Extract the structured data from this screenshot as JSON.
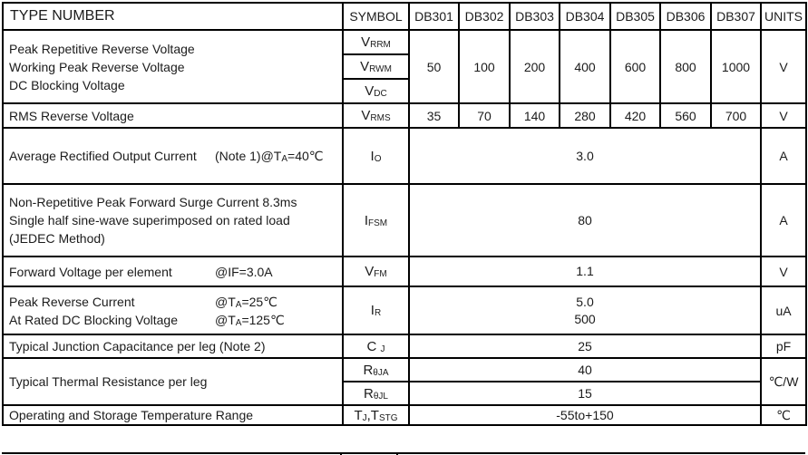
{
  "header": {
    "type_number": "TYPE NUMBER",
    "symbol": "SYMBOL",
    "types": [
      "DB301",
      "DB302",
      "DB303",
      "DB304",
      "DB305",
      "DB306",
      "DB307"
    ],
    "units": "UNITS"
  },
  "rows": [
    {
      "id": "reverse-voltage",
      "param_lines": [
        {
          "main": [
            "Peak Repetitive Reverse Voltage"
          ]
        },
        {
          "main": [
            "Working Peak Reverse Voltage"
          ]
        },
        {
          "main": [
            "DC Blocking Voltage"
          ]
        }
      ],
      "symbols": [
        [
          "V",
          {
            "sub": "RRM"
          }
        ],
        [
          "V",
          {
            "sub": "RWM"
          }
        ],
        [
          "V",
          {
            "sub": "DC"
          }
        ]
      ],
      "values_per_type": [
        "50",
        "100",
        "200",
        "400",
        "600",
        "800",
        "1000"
      ],
      "unit": "V"
    },
    {
      "id": "rms-reverse-voltage",
      "param_lines": [
        {
          "main": [
            "RMS Reverse Voltage"
          ]
        }
      ],
      "symbols": [
        [
          "V",
          {
            "sub": "RMS"
          }
        ]
      ],
      "values_per_type": [
        "35",
        "70",
        "140",
        "280",
        "420",
        "560",
        "700"
      ],
      "unit": "V"
    },
    {
      "id": "average-rectified-output-current",
      "param_lines": [
        {
          "main": [
            "Average Rectified Output Current"
          ],
          "cond": [
            "(Note 1)@T",
            {
              "sub": "A"
            },
            "=40℃"
          ]
        }
      ],
      "symbols": [
        [
          "I",
          {
            "sub": "O"
          }
        ]
      ],
      "merged_value": [
        "3.0"
      ],
      "unit": "A"
    },
    {
      "id": "surge-current",
      "param_lines": [
        {
          "main": [
            "Non-Repetitive Peak Forward Surge Current 8.3ms"
          ]
        },
        {
          "main": [
            "Single half sine-wave superimposed on rated load"
          ]
        },
        {
          "main": [
            "(JEDEC Method)"
          ]
        }
      ],
      "symbols": [
        [
          "I",
          {
            "sub": "FSM"
          }
        ]
      ],
      "merged_value": [
        "80"
      ],
      "unit": "A"
    },
    {
      "id": "forward-voltage",
      "param_lines": [
        {
          "main": [
            "Forward Voltage per element"
          ],
          "cond": [
            "@IF=3.0A"
          ]
        }
      ],
      "symbols": [
        [
          "V",
          {
            "sub": "FM"
          }
        ]
      ],
      "merged_value": [
        "1.1"
      ],
      "unit": "V"
    },
    {
      "id": "reverse-current",
      "param_lines": [
        {
          "main": [
            "Peak Reverse Current"
          ],
          "cond": [
            "@T",
            {
              "sub": "A"
            },
            "=25℃"
          ]
        },
        {
          "main": [
            "At Rated DC Blocking Voltage"
          ],
          "cond": [
            "@T",
            {
              "sub": "A"
            },
            "=125℃"
          ]
        }
      ],
      "symbols": [
        [
          "I",
          {
            "sub": "R"
          }
        ]
      ],
      "merged_value": [
        "5.0",
        "500"
      ],
      "unit": "uA"
    },
    {
      "id": "junction-capacitance",
      "param_lines": [
        {
          "main": [
            "Typical Junction Capacitance per leg (Note 2)"
          ]
        }
      ],
      "symbols": [
        [
          "C ",
          {
            "sub": "J"
          }
        ]
      ],
      "merged_value": [
        "25"
      ],
      "unit": "pF"
    },
    {
      "id": "thermal-resistance",
      "param_lines": [
        {
          "main": [
            "Typical Thermal Resistance per leg"
          ]
        }
      ],
      "symbols": [
        [
          "R",
          {
            "sub": "θJA"
          }
        ],
        [
          "R",
          {
            "sub": "θJL"
          }
        ]
      ],
      "sub_values": [
        "40",
        "15"
      ],
      "unit": "℃/W"
    },
    {
      "id": "temperature-range",
      "param_lines": [
        {
          "main": [
            "Operating and Storage Temperature Range"
          ]
        }
      ],
      "symbols": [
        [
          "T",
          {
            "sub": "J"
          },
          ",T",
          {
            "sub": "STG"
          }
        ]
      ],
      "merged_value": [
        "-55to+150"
      ],
      "unit": "℃"
    }
  ]
}
